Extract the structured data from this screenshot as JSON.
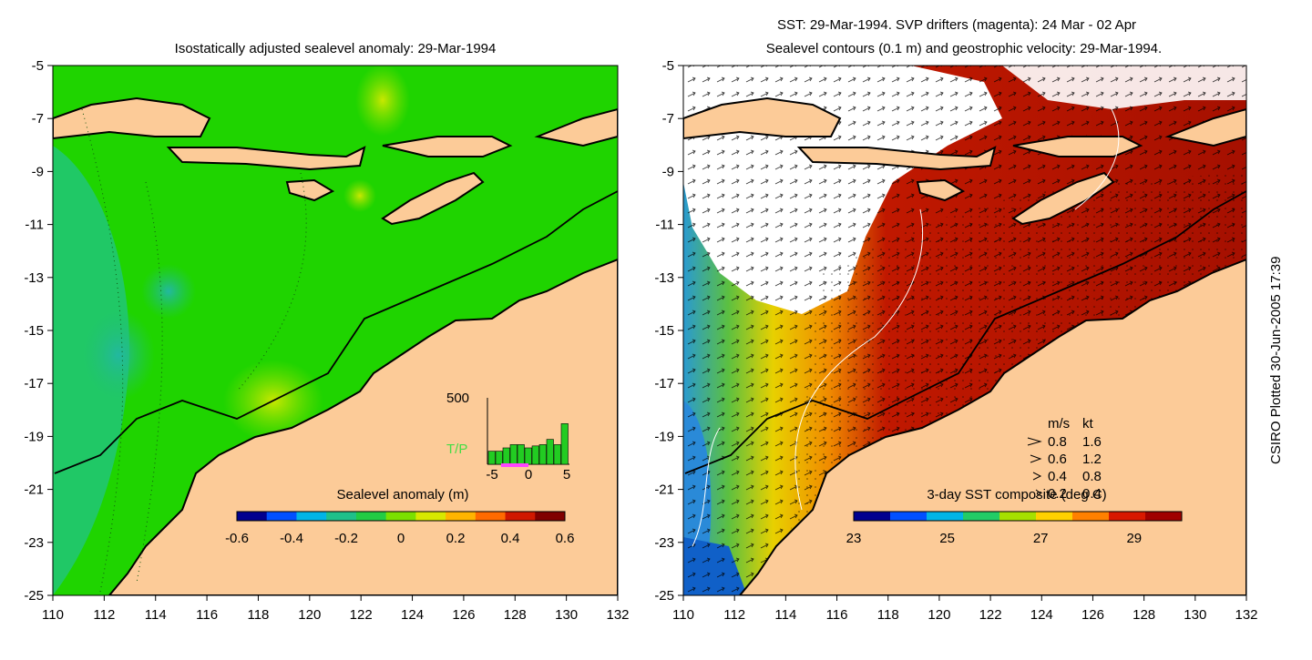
{
  "left_panel": {
    "title": "Isostatically adjusted sealevel anomaly: 29-Mar-1994",
    "colorbar_label": "Sealevel anomaly (m)",
    "colorbar_ticks": [
      "-0.6",
      "-0.4",
      "-0.2",
      "0",
      "0.2",
      "0.4",
      "0.6"
    ],
    "colorbar_colors": [
      "#00008f",
      "#0050ff",
      "#00b4e6",
      "#1fc08a",
      "#22cc44",
      "#7be000",
      "#d8e800",
      "#ffb400",
      "#ff6a00",
      "#d01800",
      "#800000"
    ],
    "inset": {
      "y_label": "500",
      "series_label": "T/P",
      "x_ticks": [
        "-5",
        "0",
        "5"
      ],
      "bars": [
        0.2,
        0.2,
        0.25,
        0.3,
        0.3,
        0.25,
        0.28,
        0.3,
        0.38,
        0.3,
        0.62
      ]
    }
  },
  "right_panel": {
    "title_line1": "SST: 29-Mar-1994. SVP drifters (magenta): 24 Mar - 02 Apr",
    "title_line2": "Sealevel contours (0.1 m) and geostrophic velocity: 29-Mar-1994.",
    "colorbar_label": "3-day SST composite (deg C)",
    "colorbar_ticks": [
      "23",
      "25",
      "27",
      "29"
    ],
    "colorbar_colors": [
      "#00008f",
      "#0050ff",
      "#00b4e6",
      "#22cc66",
      "#a6e000",
      "#ffd000",
      "#ff8000",
      "#d81800",
      "#a00000"
    ],
    "vector_key": {
      "header_ms": "m/s",
      "header_kt": "kt",
      "rows": [
        {
          "ms": "0.8",
          "kt": "1.6"
        },
        {
          "ms": "0.6",
          "kt": "1.2"
        },
        {
          "ms": "0.4",
          "kt": "0.8"
        },
        {
          "ms": "0.2",
          "kt": "0.4"
        }
      ]
    }
  },
  "axes": {
    "x_ticks": [
      "110",
      "112",
      "114",
      "116",
      "118",
      "120",
      "122",
      "124",
      "126",
      "128",
      "130",
      "132"
    ],
    "y_ticks": [
      "-5",
      "-7",
      "-9",
      "-11",
      "-13",
      "-15",
      "-17",
      "-19",
      "-21",
      "-23",
      "-25"
    ]
  },
  "colors": {
    "land": "#fccb98",
    "sea_anomaly": "#1fd400",
    "sst_warm": "#a51000",
    "coast": "#000000"
  },
  "credit": "CSIRO Plotted 30-Jun-2005 17:39"
}
